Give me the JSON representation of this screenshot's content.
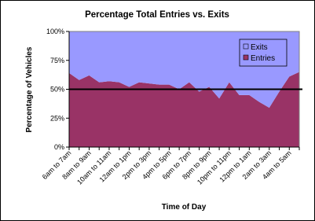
{
  "chart_data": {
    "type": "stacked_area_percent",
    "title": "Percentage Total Entries vs. Exits",
    "x_label": "Time of Day",
    "y_label": "Percentage of Vehicles",
    "categories": [
      "6am to 7am",
      null,
      "8am to 9am",
      null,
      "10am to 11am",
      null,
      "12am to 1pm",
      null,
      "2pm to 3pm",
      null,
      "4pm to 5pm",
      null,
      "6pm to 7pm",
      null,
      "8pm to 9pm",
      null,
      "10pm to 11pm",
      null,
      "12pm to 1am",
      null,
      "2am to 3am",
      null,
      "4am to 5am",
      null
    ],
    "series": [
      {
        "name": "Entries",
        "color": "#993366",
        "values": [
          64,
          58,
          62,
          56,
          57,
          56,
          52,
          56,
          55,
          54,
          54,
          50,
          56,
          48,
          52,
          42,
          56,
          45,
          45,
          39,
          34,
          48,
          61,
          65
        ]
      },
      {
        "name": "Exits",
        "color": "#9999ff",
        "values": [
          36,
          42,
          38,
          44,
          43,
          44,
          48,
          44,
          45,
          46,
          46,
          50,
          44,
          52,
          48,
          58,
          44,
          55,
          55,
          61,
          66,
          52,
          39,
          35
        ]
      }
    ],
    "reference_line": 50,
    "ylim": [
      0,
      100
    ],
    "yticks": [
      {
        "value": 0,
        "label": "0%"
      },
      {
        "value": 25,
        "label": "25%"
      },
      {
        "value": 50,
        "label": "50%"
      },
      {
        "value": 75,
        "label": "75%"
      },
      {
        "value": 100,
        "label": "100%"
      }
    ],
    "legend": "upper right"
  }
}
